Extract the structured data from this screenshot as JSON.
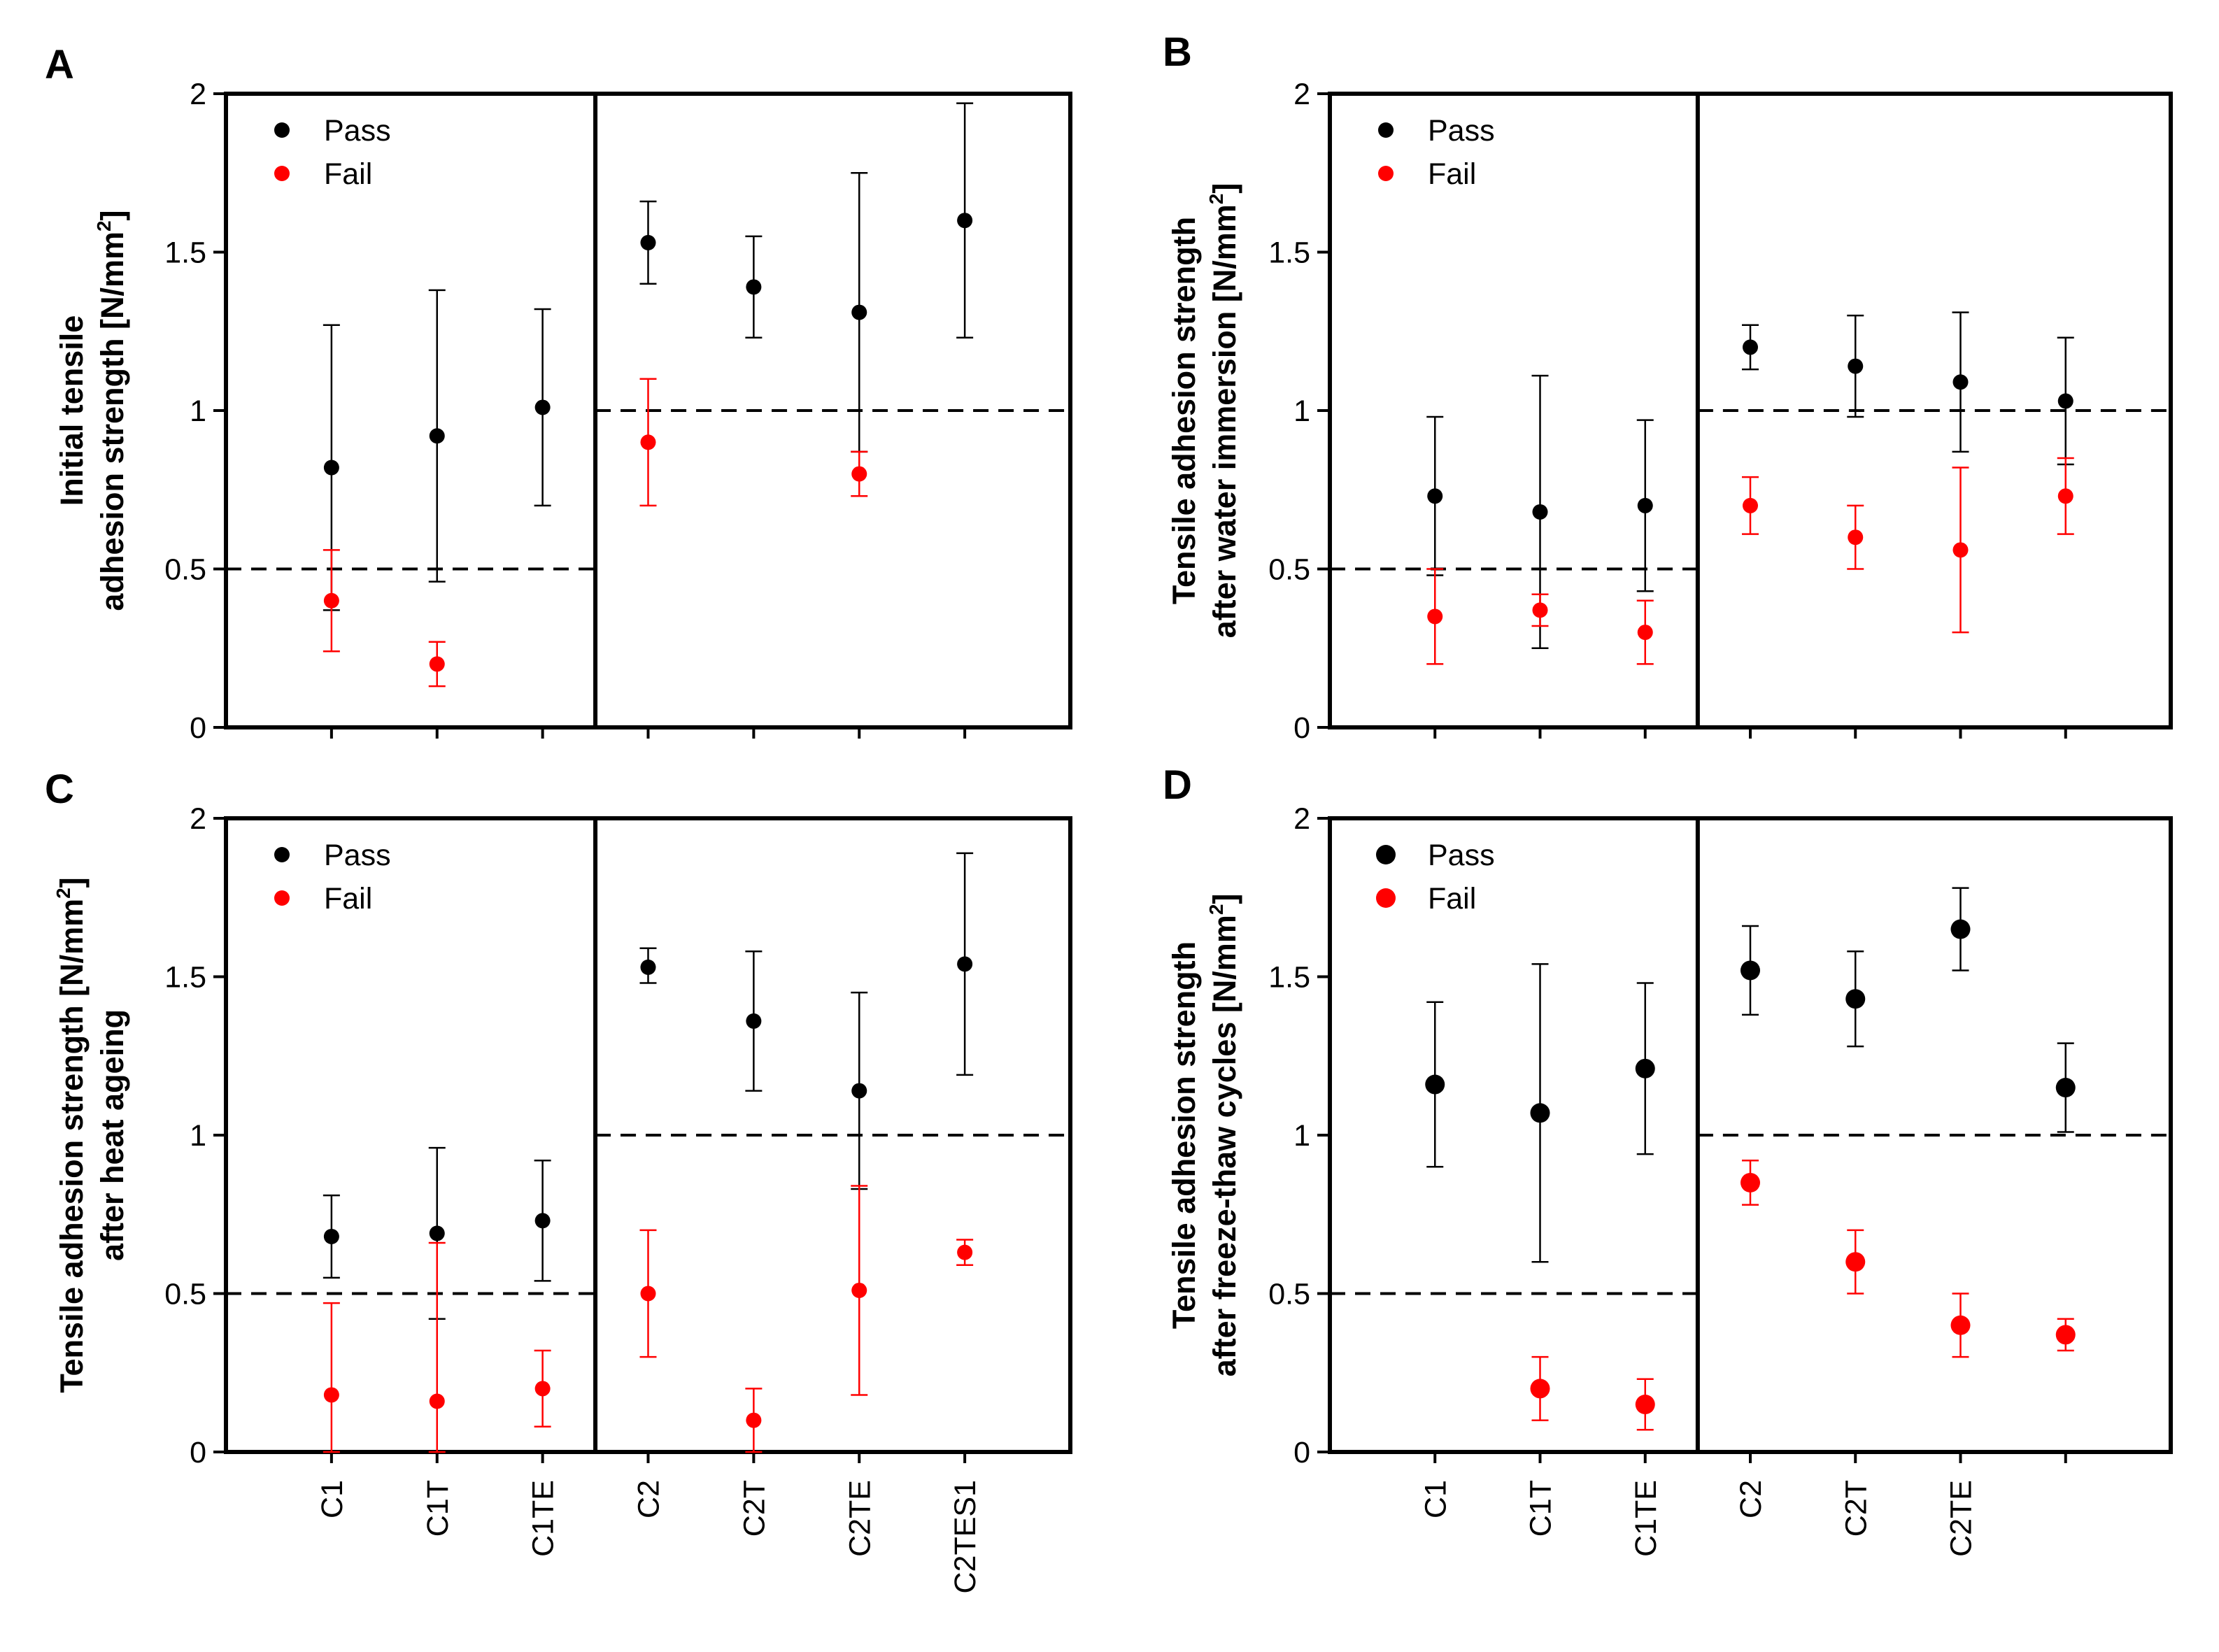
{
  "colors": {
    "pass": "#000000",
    "fail": "#ff0000",
    "axis": "#000000"
  },
  "chart_data": [
    {
      "panel": "A",
      "type": "scatter",
      "ylabel_lines": [
        "Initial tensile",
        "adhesion strength [N/mm",
        "2",
        "]"
      ],
      "ylim": [
        0,
        2
      ],
      "yticks": [
        "0",
        "0.5",
        "1",
        "1.5",
        "2"
      ],
      "categories": [
        "C1",
        "C1T",
        "C1TE",
        "C2",
        "C2T",
        "C2TE",
        "C2TES1"
      ],
      "category_labels_shown": false,
      "thresholds": [
        {
          "from": "C1",
          "to": "C1TE",
          "y": 0.5
        },
        {
          "from": "C2",
          "to": "C2TES1",
          "y": 1.0
        }
      ],
      "legend": {
        "position": "top-left",
        "entries": [
          "Pass",
          "Fail"
        ]
      },
      "series": [
        {
          "name": "Pass",
          "color": "#000000",
          "points": [
            {
              "x": "C1",
              "y": 0.82,
              "low": 0.37,
              "high": 1.27
            },
            {
              "x": "C1T",
              "y": 0.92,
              "low": 0.46,
              "high": 1.38
            },
            {
              "x": "C1TE",
              "y": 1.01,
              "low": 0.7,
              "high": 1.32
            },
            {
              "x": "C2",
              "y": 1.53,
              "low": 1.4,
              "high": 1.66
            },
            {
              "x": "C2T",
              "y": 1.39,
              "low": 1.23,
              "high": 1.55
            },
            {
              "x": "C2TE",
              "y": 1.31,
              "low": 0.87,
              "high": 1.75
            },
            {
              "x": "C2TES1",
              "y": 1.6,
              "low": 1.23,
              "high": 1.97
            }
          ]
        },
        {
          "name": "Fail",
          "color": "#ff0000",
          "points": [
            {
              "x": "C1",
              "y": 0.4,
              "low": 0.24,
              "high": 0.56
            },
            {
              "x": "C1T",
              "y": 0.2,
              "low": 0.13,
              "high": 0.27
            },
            {
              "x": "C2",
              "y": 0.9,
              "low": 0.7,
              "high": 1.1
            },
            {
              "x": "C2TE",
              "y": 0.8,
              "low": 0.73,
              "high": 0.87
            }
          ]
        }
      ]
    },
    {
      "panel": "B",
      "type": "scatter",
      "ylabel_lines": [
        "Tensile adhesion strength",
        "after water immersion [N/mm",
        "2",
        "]"
      ],
      "ylim": [
        0,
        2
      ],
      "yticks": [
        "0",
        "0.5",
        "1",
        "1.5",
        "2"
      ],
      "categories": [
        "C1",
        "C1T",
        "C1TE",
        "C2",
        "C2T",
        "C2TE",
        "C2TES1"
      ],
      "category_labels_shown": false,
      "thresholds": [
        {
          "from": "C1",
          "to": "C1TE",
          "y": 0.5
        },
        {
          "from": "C2",
          "to": "C2TES1",
          "y": 1.0
        }
      ],
      "legend": {
        "position": "top-left",
        "entries": [
          "Pass",
          "Fail"
        ]
      },
      "series": [
        {
          "name": "Pass",
          "color": "#000000",
          "points": [
            {
              "x": "C1",
              "y": 0.73,
              "low": 0.48,
              "high": 0.98
            },
            {
              "x": "C1T",
              "y": 0.68,
              "low": 0.25,
              "high": 1.11
            },
            {
              "x": "C1TE",
              "y": 0.7,
              "low": 0.43,
              "high": 0.97
            },
            {
              "x": "C2",
              "y": 1.2,
              "low": 1.13,
              "high": 1.27
            },
            {
              "x": "C2T",
              "y": 1.14,
              "low": 0.98,
              "high": 1.3
            },
            {
              "x": "C2TE",
              "y": 1.09,
              "low": 0.87,
              "high": 1.31
            },
            {
              "x": "C2TES1",
              "y": 1.03,
              "low": 0.83,
              "high": 1.23
            }
          ]
        },
        {
          "name": "Fail",
          "color": "#ff0000",
          "points": [
            {
              "x": "C1",
              "y": 0.35,
              "low": 0.2,
              "high": 0.5
            },
            {
              "x": "C1T",
              "y": 0.37,
              "low": 0.32,
              "high": 0.42
            },
            {
              "x": "C1TE",
              "y": 0.3,
              "low": 0.2,
              "high": 0.4
            },
            {
              "x": "C2",
              "y": 0.7,
              "low": 0.61,
              "high": 0.79
            },
            {
              "x": "C2T",
              "y": 0.6,
              "low": 0.5,
              "high": 0.7
            },
            {
              "x": "C2TE",
              "y": 0.56,
              "low": 0.3,
              "high": 0.82
            },
            {
              "x": "C2TES1",
              "y": 0.73,
              "low": 0.61,
              "high": 0.85
            }
          ]
        }
      ]
    },
    {
      "panel": "C",
      "type": "scatter",
      "ylabel_lines": [
        "Tensile adhesion strength [N/mm",
        "2",
        "]",
        "after heat ageing"
      ],
      "ylim": [
        0,
        2
      ],
      "yticks": [
        "0",
        "0.5",
        "1",
        "1.5",
        "2"
      ],
      "categories": [
        "C1",
        "C1T",
        "C1TE",
        "C2",
        "C2T",
        "C2TE",
        "C2TES1"
      ],
      "category_labels_shown": true,
      "thresholds": [
        {
          "from": "C1",
          "to": "C1TE",
          "y": 0.5
        },
        {
          "from": "C2",
          "to": "C2TES1",
          "y": 1.0
        }
      ],
      "legend": {
        "position": "top-left",
        "entries": [
          "Pass",
          "Fail"
        ]
      },
      "series": [
        {
          "name": "Pass",
          "color": "#000000",
          "points": [
            {
              "x": "C1",
              "y": 0.68,
              "low": 0.55,
              "high": 0.81
            },
            {
              "x": "C1T",
              "y": 0.69,
              "low": 0.42,
              "high": 0.96
            },
            {
              "x": "C1TE",
              "y": 0.73,
              "low": 0.54,
              "high": 0.92
            },
            {
              "x": "C2",
              "y": 1.53,
              "low": 1.48,
              "high": 1.59
            },
            {
              "x": "C2T",
              "y": 1.36,
              "low": 1.14,
              "high": 1.58
            },
            {
              "x": "C2TE",
              "y": 1.14,
              "low": 0.83,
              "high": 1.45
            },
            {
              "x": "C2TES1",
              "y": 1.54,
              "low": 1.19,
              "high": 1.89
            }
          ]
        },
        {
          "name": "Fail",
          "color": "#ff0000",
          "points": [
            {
              "x": "C1",
              "y": 0.18,
              "low": 0.0,
              "high": 0.47
            },
            {
              "x": "C1T",
              "y": 0.16,
              "low": 0.0,
              "high": 0.66
            },
            {
              "x": "C1TE",
              "y": 0.2,
              "low": 0.08,
              "high": 0.32
            },
            {
              "x": "C2",
              "y": 0.5,
              "low": 0.3,
              "high": 0.7
            },
            {
              "x": "C2T",
              "y": 0.1,
              "low": 0.0,
              "high": 0.2
            },
            {
              "x": "C2TE",
              "y": 0.51,
              "low": 0.18,
              "high": 0.84
            },
            {
              "x": "C2TES1",
              "y": 0.63,
              "low": 0.59,
              "high": 0.67
            }
          ]
        }
      ]
    },
    {
      "panel": "D",
      "type": "scatter",
      "ylabel_lines": [
        "Tensile adhesion strength",
        "after freeze-thaw cycles [N/mm",
        "2",
        "]"
      ],
      "ylim": [
        0,
        2
      ],
      "yticks": [
        "0",
        "0.5",
        "1",
        "1.5",
        "2"
      ],
      "categories": [
        "C1",
        "C1T",
        "C1TE",
        "C2",
        "C2T",
        "C2TE",
        ""
      ],
      "category_labels_shown": true,
      "thresholds": [
        {
          "from": "C1",
          "to": "C1TE",
          "y": 0.5
        },
        {
          "from": "C2",
          "to": "",
          "y": 1.0
        }
      ],
      "legend": {
        "position": "top-left",
        "entries": [
          "Pass",
          "Fail"
        ]
      },
      "series": [
        {
          "name": "Pass",
          "color": "#000000",
          "points": [
            {
              "x": "C1",
              "y": 1.16,
              "low": 0.9,
              "high": 1.42
            },
            {
              "x": "C1T",
              "y": 1.07,
              "low": 0.6,
              "high": 1.54
            },
            {
              "x": "C1TE",
              "y": 1.21,
              "low": 0.94,
              "high": 1.48
            },
            {
              "x": "C2",
              "y": 1.52,
              "low": 1.38,
              "high": 1.66
            },
            {
              "x": "C2T",
              "y": 1.43,
              "low": 1.28,
              "high": 1.58
            },
            {
              "x": "C2TE",
              "y": 1.65,
              "low": 1.52,
              "high": 1.78
            },
            {
              "x": "",
              "y": 1.15,
              "low": 1.01,
              "high": 1.29
            }
          ]
        },
        {
          "name": "Fail",
          "color": "#ff0000",
          "points": [
            {
              "x": "C1T",
              "y": 0.2,
              "low": 0.1,
              "high": 0.3
            },
            {
              "x": "C1TE",
              "y": 0.15,
              "low": 0.07,
              "high": 0.23
            },
            {
              "x": "C2",
              "y": 0.85,
              "low": 0.78,
              "high": 0.92
            },
            {
              "x": "C2T",
              "y": 0.6,
              "low": 0.5,
              "high": 0.7
            },
            {
              "x": "C2TE",
              "y": 0.4,
              "low": 0.3,
              "high": 0.5
            },
            {
              "x": "",
              "y": 0.37,
              "low": 0.32,
              "high": 0.42
            }
          ]
        }
      ]
    }
  ]
}
